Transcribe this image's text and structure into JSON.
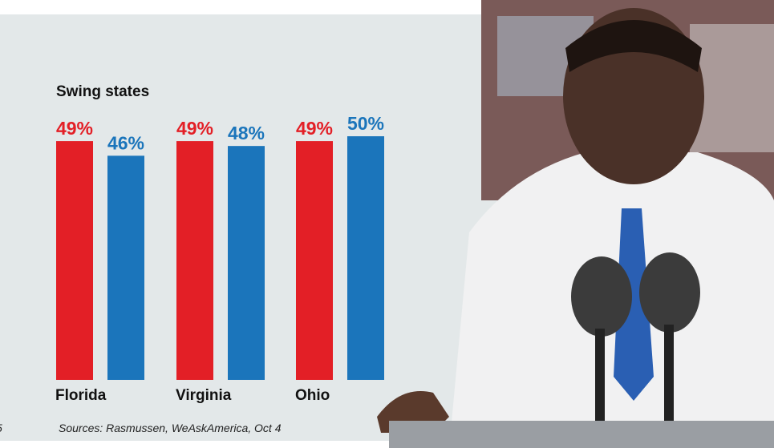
{
  "chart_data": {
    "type": "bar",
    "title": "Swing states",
    "categories": [
      "Florida",
      "Virginia",
      "Ohio"
    ],
    "series": [
      {
        "color": "#e31f26",
        "values": [
          49,
          49,
          49
        ],
        "value_labels": [
          "49%",
          "49%",
          "49%"
        ]
      },
      {
        "color": "#1b75bb",
        "values": [
          46,
          48,
          50
        ],
        "value_labels": [
          "46%",
          "48%",
          "50%"
        ]
      }
    ],
    "source": "Sources: Rasmussen,  WeAskAmerica, Oct 4",
    "fragment": "5"
  }
}
